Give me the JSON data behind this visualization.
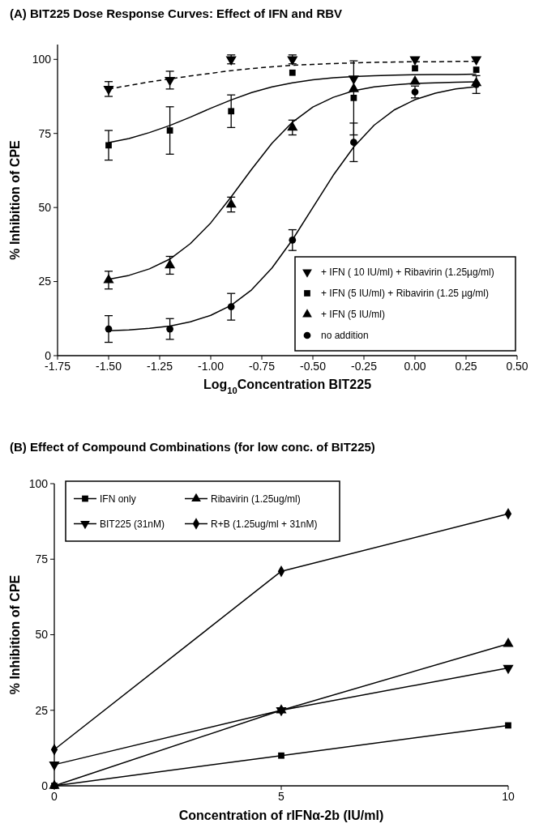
{
  "chart_data": [
    {
      "type": "scatter",
      "title": "(A) BIT225 Dose Response Curves: Effect of IFN and RBV",
      "xlabel": "Log$_{10}$Concentration BIT225",
      "ylabel": "% Inhibition of CPE",
      "xlim": [
        -1.75,
        0.5
      ],
      "xticks": [
        -1.75,
        {
          "value": -1.5,
          "label": "-1.50"
        },
        -1.25,
        {
          "value": -1,
          "label": "-1.00"
        },
        -0.75,
        {
          "value": -0.5,
          "label": "-0.50"
        },
        -0.25,
        {
          "value": 0,
          "label": "0.00"
        },
        0.25,
        {
          "value": 0.5,
          "label": "0.50"
        }
      ],
      "ylim": [
        0,
        105
      ],
      "yticks": [
        0,
        25,
        50,
        75,
        100
      ],
      "legend": "bottom right",
      "series": [
        {
          "type": "line",
          "color": "#000000",
          "marker": "none",
          "line_style": "dashed",
          "x": [
            -1.5,
            -1.4,
            -1.3,
            -1.2,
            -1.1,
            -1.0,
            -0.9,
            -0.8,
            -0.7,
            -0.6,
            -0.5,
            -0.4,
            -0.3,
            -0.2,
            -0.1,
            0,
            0.1,
            0.2,
            0.3
          ],
          "values": [
            90,
            91.2,
            92.4,
            93.4,
            94.4,
            95.3,
            96.2,
            96.9,
            97.5,
            98,
            98.3,
            98.6,
            98.8,
            99,
            99.1,
            99.2,
            99.2,
            99.3,
            99.3
          ]
        },
        {
          "type": "line",
          "color": "#000000",
          "marker": "none",
          "line_style": "solid",
          "x": [
            -1.5,
            -1.4,
            -1.3,
            -1.2,
            -1.1,
            -1.0,
            -0.9,
            -0.8,
            -0.7,
            -0.6,
            -0.5,
            -0.4,
            -0.3,
            -0.2,
            -0.1,
            0,
            0.1,
            0.2,
            0.3
          ],
          "values": [
            71.9,
            73.3,
            75.3,
            77.7,
            80.5,
            83.5,
            86.3,
            88.8,
            90.7,
            92.1,
            93.1,
            93.8,
            94.2,
            94.5,
            94.7,
            94.8,
            94.9,
            94.9,
            95
          ]
        },
        {
          "type": "line",
          "color": "#000000",
          "marker": "none",
          "line_style": "solid",
          "x": [
            -1.5,
            -1.4,
            -1.3,
            -1.2,
            -1.1,
            -1.0,
            -0.9,
            -0.8,
            -0.7,
            -0.6,
            -0.5,
            -0.4,
            -0.3,
            -0.2,
            -0.1,
            0,
            0.1,
            0.2,
            0.3
          ],
          "values": [
            25.8,
            27.1,
            29.3,
            32.6,
            37.8,
            44.8,
            53.6,
            62.9,
            71.7,
            78.8,
            83.9,
            87.2,
            89.4,
            90.7,
            91.4,
            91.9,
            92.1,
            92.3,
            92.4
          ]
        },
        {
          "type": "line",
          "color": "#000000",
          "marker": "none",
          "line_style": "solid",
          "x": [
            -1.5,
            -1.4,
            -1.3,
            -1.2,
            -1.1,
            -1.0,
            -0.9,
            -0.8,
            -0.7,
            -0.6,
            -0.5,
            -0.4,
            -0.3,
            -0.2,
            -0.1,
            0,
            0.1,
            0.2,
            0.3
          ],
          "values": [
            8.4,
            8.7,
            9.2,
            10,
            11.4,
            13.6,
            17,
            22.2,
            29.6,
            39.1,
            50,
            60.9,
            70.4,
            77.8,
            83,
            86.4,
            88.6,
            90,
            90.8
          ]
        },
        {
          "type": "scatter",
          "name": "+ IFN ( 10 IU/ml) + Ribavirin (1.25µg/ml)",
          "color": "#000000",
          "marker": "triangle-down",
          "x": [
            -1.5,
            -1.2,
            -0.9,
            -0.6,
            -0.3,
            0,
            0.3
          ],
          "values": [
            90,
            93,
            100,
            100,
            93.5,
            100,
            100
          ],
          "errors": [
            2.5,
            3,
            1.5,
            1.5,
            null,
            null,
            null
          ]
        },
        {
          "type": "scatter",
          "name": "+ IFN (5 IU/ml) + Ribavirin (1.25 µg/ml)",
          "color": "#000000",
          "marker": "square",
          "x": [
            -1.5,
            -1.2,
            -0.9,
            -0.6,
            -0.3,
            0,
            0.3
          ],
          "values": [
            71,
            76,
            82.5,
            95.5,
            87,
            97,
            96.5
          ],
          "errors": [
            5,
            8,
            5.5,
            null,
            12.5,
            null,
            null
          ]
        },
        {
          "type": "scatter",
          "name": "+ IFN (5 IU/ml)",
          "color": "#000000",
          "marker": "triangle",
          "x": [
            -1.5,
            -1.2,
            -0.9,
            -0.6,
            -0.3,
            0,
            0.3
          ],
          "values": [
            25.5,
            30.5,
            51,
            77,
            90,
            92.5,
            92
          ],
          "errors": [
            3,
            3,
            2.5,
            2.5,
            null,
            null,
            null
          ]
        },
        {
          "type": "scatter",
          "name": "no addition",
          "color": "#000000",
          "marker": "circle",
          "x": [
            -1.5,
            -1.2,
            -0.9,
            -0.6,
            -0.3,
            0,
            0.3
          ],
          "values": [
            9,
            9,
            16.5,
            39,
            72,
            89,
            91.5
          ],
          "errors": [
            4.5,
            3.5,
            4.5,
            3.5,
            6.5,
            2,
            3
          ]
        }
      ]
    },
    {
      "type": "line",
      "title": "(B) Effect of Compound Combinations (for low conc. of BIT225)",
      "xlabel": "Concentration of rIFNα-2b (IU/ml)",
      "ylabel": "% Inhibition of CPE",
      "x": [
        0,
        5,
        10
      ],
      "xlim": [
        0,
        10
      ],
      "xticks": [
        0,
        5,
        10
      ],
      "ylim": [
        0,
        100
      ],
      "yticks": [
        0,
        25,
        50,
        75,
        100
      ],
      "legend": "top left",
      "series": [
        {
          "name": "IFN only",
          "color": "#000000",
          "marker": "square",
          "values": [
            0,
            10,
            20
          ]
        },
        {
          "name": "Ribavirin (1.25ug/ml)",
          "color": "#000000",
          "marker": "triangle",
          "values": [
            0,
            25,
            47
          ]
        },
        {
          "name": "BIT225 (31nM)",
          "color": "#000000",
          "marker": "triangle-down",
          "values": [
            7,
            25,
            39
          ]
        },
        {
          "name": "R+B (1.25ug/ml + 31nM)",
          "color": "#000000",
          "marker": "diamond",
          "values": [
            12,
            71,
            90
          ]
        }
      ]
    }
  ]
}
